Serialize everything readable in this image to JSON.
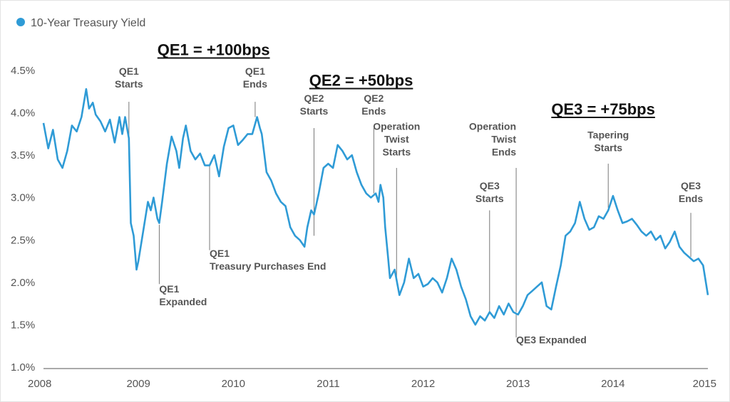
{
  "chart_data": {
    "type": "line",
    "title": "",
    "xlabel": "",
    "ylabel": "",
    "xlim": [
      2008.0,
      2015.0
    ],
    "ylim": [
      1.0,
      4.5
    ],
    "x_ticks": [
      "2008",
      "2009",
      "2010",
      "2011",
      "2012",
      "2013",
      "2014",
      "2015"
    ],
    "y_ticks": [
      "1.0%",
      "1.5%",
      "2.0%",
      "2.5%",
      "3.0%",
      "3.5%",
      "4.0%",
      "4.5%"
    ],
    "legend": {
      "placement": "top-left",
      "entries": [
        "10-Year Treasury Yield"
      ]
    },
    "series_color": "#2f9bd6",
    "series": [
      {
        "name": "10-Year Treasury Yield",
        "x": [
          2008.0,
          2008.05,
          2008.1,
          2008.15,
          2008.2,
          2008.25,
          2008.3,
          2008.35,
          2008.4,
          2008.45,
          2008.48,
          2008.52,
          2008.55,
          2008.6,
          2008.65,
          2008.7,
          2008.75,
          2008.8,
          2008.83,
          2008.86,
          2008.88,
          2008.9,
          2008.92,
          2008.95,
          2008.98,
          2009.0,
          2009.05,
          2009.1,
          2009.13,
          2009.16,
          2009.2,
          2009.22,
          2009.25,
          2009.3,
          2009.35,
          2009.4,
          2009.43,
          2009.47,
          2009.5,
          2009.55,
          2009.6,
          2009.65,
          2009.7,
          2009.75,
          2009.8,
          2009.85,
          2009.9,
          2009.95,
          2010.0,
          2010.05,
          2010.1,
          2010.15,
          2010.2,
          2010.25,
          2010.28,
          2010.3,
          2010.35,
          2010.4,
          2010.45,
          2010.5,
          2010.55,
          2010.6,
          2010.65,
          2010.7,
          2010.75,
          2010.78,
          2010.82,
          2010.85,
          2010.88,
          2010.9,
          2010.95,
          2011.0,
          2011.05,
          2011.1,
          2011.15,
          2011.2,
          2011.25,
          2011.3,
          2011.35,
          2011.4,
          2011.45,
          2011.5,
          2011.53,
          2011.55,
          2011.58,
          2011.6,
          2011.63,
          2011.65,
          2011.7,
          2011.75,
          2011.8,
          2011.85,
          2011.9,
          2011.95,
          2012.0,
          2012.05,
          2012.1,
          2012.15,
          2012.2,
          2012.25,
          2012.3,
          2012.35,
          2012.4,
          2012.45,
          2012.5,
          2012.55,
          2012.6,
          2012.65,
          2012.7,
          2012.75,
          2012.8,
          2012.85,
          2012.9,
          2012.95,
          2013.0,
          2013.05,
          2013.1,
          2013.15,
          2013.2,
          2013.25,
          2013.3,
          2013.35,
          2013.4,
          2013.45,
          2013.5,
          2013.55,
          2013.6,
          2013.65,
          2013.7,
          2013.75,
          2013.8,
          2013.85,
          2013.9,
          2013.95,
          2014.0,
          2014.05,
          2014.1,
          2014.15,
          2014.2,
          2014.25,
          2014.3,
          2014.35,
          2014.4,
          2014.45,
          2014.5,
          2014.55,
          2014.6,
          2014.65,
          2014.7,
          2014.75,
          2014.8,
          2014.85,
          2014.9,
          2014.95,
          2015.0
        ],
        "values": [
          3.88,
          3.58,
          3.8,
          3.45,
          3.35,
          3.55,
          3.85,
          3.78,
          3.95,
          4.28,
          4.05,
          4.12,
          3.98,
          3.9,
          3.78,
          3.92,
          3.65,
          3.95,
          3.75,
          3.95,
          3.82,
          3.7,
          2.7,
          2.55,
          2.15,
          2.25,
          2.6,
          2.95,
          2.85,
          3.0,
          2.75,
          2.7,
          2.95,
          3.4,
          3.72,
          3.55,
          3.35,
          3.7,
          3.85,
          3.55,
          3.45,
          3.52,
          3.38,
          3.38,
          3.5,
          3.25,
          3.6,
          3.82,
          3.85,
          3.62,
          3.68,
          3.75,
          3.75,
          3.95,
          3.82,
          3.75,
          3.3,
          3.2,
          3.05,
          2.95,
          2.9,
          2.65,
          2.55,
          2.5,
          2.42,
          2.65,
          2.85,
          2.8,
          2.95,
          3.05,
          3.35,
          3.4,
          3.35,
          3.62,
          3.55,
          3.45,
          3.5,
          3.3,
          3.15,
          3.05,
          3.0,
          3.05,
          2.95,
          3.15,
          3.0,
          2.65,
          2.3,
          2.05,
          2.15,
          1.85,
          2.0,
          2.28,
          2.05,
          2.1,
          1.95,
          1.98,
          2.05,
          2.0,
          1.88,
          2.05,
          2.28,
          2.15,
          1.95,
          1.8,
          1.6,
          1.5,
          1.6,
          1.55,
          1.65,
          1.58,
          1.72,
          1.62,
          1.75,
          1.65,
          1.62,
          1.72,
          1.85,
          1.9,
          1.95,
          2.0,
          1.72,
          1.68,
          1.95,
          2.2,
          2.55,
          2.6,
          2.7,
          2.95,
          2.75,
          2.62,
          2.65,
          2.78,
          2.75,
          2.85,
          3.02,
          2.85,
          2.7,
          2.72,
          2.75,
          2.68,
          2.6,
          2.55,
          2.6,
          2.5,
          2.55,
          2.4,
          2.48,
          2.6,
          2.42,
          2.35,
          2.3,
          2.25,
          2.28,
          2.2,
          1.85
        ]
      }
    ],
    "annotations": [
      {
        "id": "qe1-starts",
        "x": 2008.9,
        "line_top": 4.13,
        "line_bottom": 3.62,
        "lines": [
          "QE1",
          "Starts"
        ],
        "label_y": 4.45,
        "anchor": "middle"
      },
      {
        "id": "qe1-expanded",
        "x": 2009.22,
        "line_top": 2.68,
        "line_bottom": 1.98,
        "lines": [
          "QE1",
          "Expanded"
        ],
        "label_y": 1.88,
        "anchor": "start"
      },
      {
        "id": "qe1-ends",
        "x": 2010.23,
        "line_top": 4.13,
        "line_bottom": 3.95,
        "lines": [
          "QE1",
          "Ends"
        ],
        "label_y": 4.45,
        "anchor": "middle"
      },
      {
        "id": "qe1-treasury-end",
        "x": 2009.75,
        "line_top": 3.38,
        "line_bottom": 2.38,
        "lines": [
          "QE1",
          "Treasury Purchases End"
        ],
        "label_y": 2.3,
        "anchor": "start"
      },
      {
        "id": "qe2-starts",
        "x": 2010.85,
        "line_top": 3.82,
        "line_bottom": 2.55,
        "lines": [
          "QE2",
          "Starts"
        ],
        "label_y": 4.13,
        "anchor": "middle"
      },
      {
        "id": "qe2-ends",
        "x": 2011.48,
        "line_top": 3.82,
        "line_bottom": 3.05,
        "lines": [
          "QE2",
          "Ends"
        ],
        "label_y": 4.13,
        "anchor": "middle"
      },
      {
        "id": "operation-twist-starts",
        "x": 2011.72,
        "line_top": 3.35,
        "line_bottom": 2.05,
        "lines": [
          "Operation",
          "Twist",
          "Starts"
        ],
        "label_y": 3.8,
        "anchor": "middle"
      },
      {
        "id": "qe3-starts",
        "x": 2012.7,
        "line_top": 2.85,
        "line_bottom": 1.65,
        "lines": [
          "QE3",
          "Starts"
        ],
        "label_y": 3.1,
        "anchor": "middle"
      },
      {
        "id": "operation-twist-ends",
        "x": 2012.98,
        "line_top": 3.35,
        "line_bottom": 1.65,
        "lines": [
          "Operation",
          "Twist",
          "Ends"
        ],
        "label_y": 3.8,
        "anchor": "end"
      },
      {
        "id": "qe3-expanded",
        "x": 2012.98,
        "line_top": 1.62,
        "line_bottom": 1.35,
        "lines": [
          "QE3 Expanded"
        ],
        "label_y": 1.28,
        "anchor": "start"
      },
      {
        "id": "tapering-starts",
        "x": 2013.95,
        "line_top": 3.4,
        "line_bottom": 2.88,
        "lines": [
          "Tapering",
          "Starts"
        ],
        "label_y": 3.7,
        "anchor": "middle"
      },
      {
        "id": "qe3-ends",
        "x": 2014.82,
        "line_top": 2.82,
        "line_bottom": 2.3,
        "lines": [
          "QE3",
          "Ends"
        ],
        "label_y": 3.1,
        "anchor": "middle"
      }
    ],
    "callouts": [
      {
        "id": "qe1-callout",
        "text": "QE1 = +100bps",
        "x": 2009.2,
        "y": 4.68
      },
      {
        "id": "qe2-callout",
        "text": "QE2 = +50bps",
        "x": 2010.8,
        "y": 4.32
      },
      {
        "id": "qe3-callout",
        "text": "QE3 = +75bps",
        "x": 2013.35,
        "y": 3.98
      }
    ]
  }
}
